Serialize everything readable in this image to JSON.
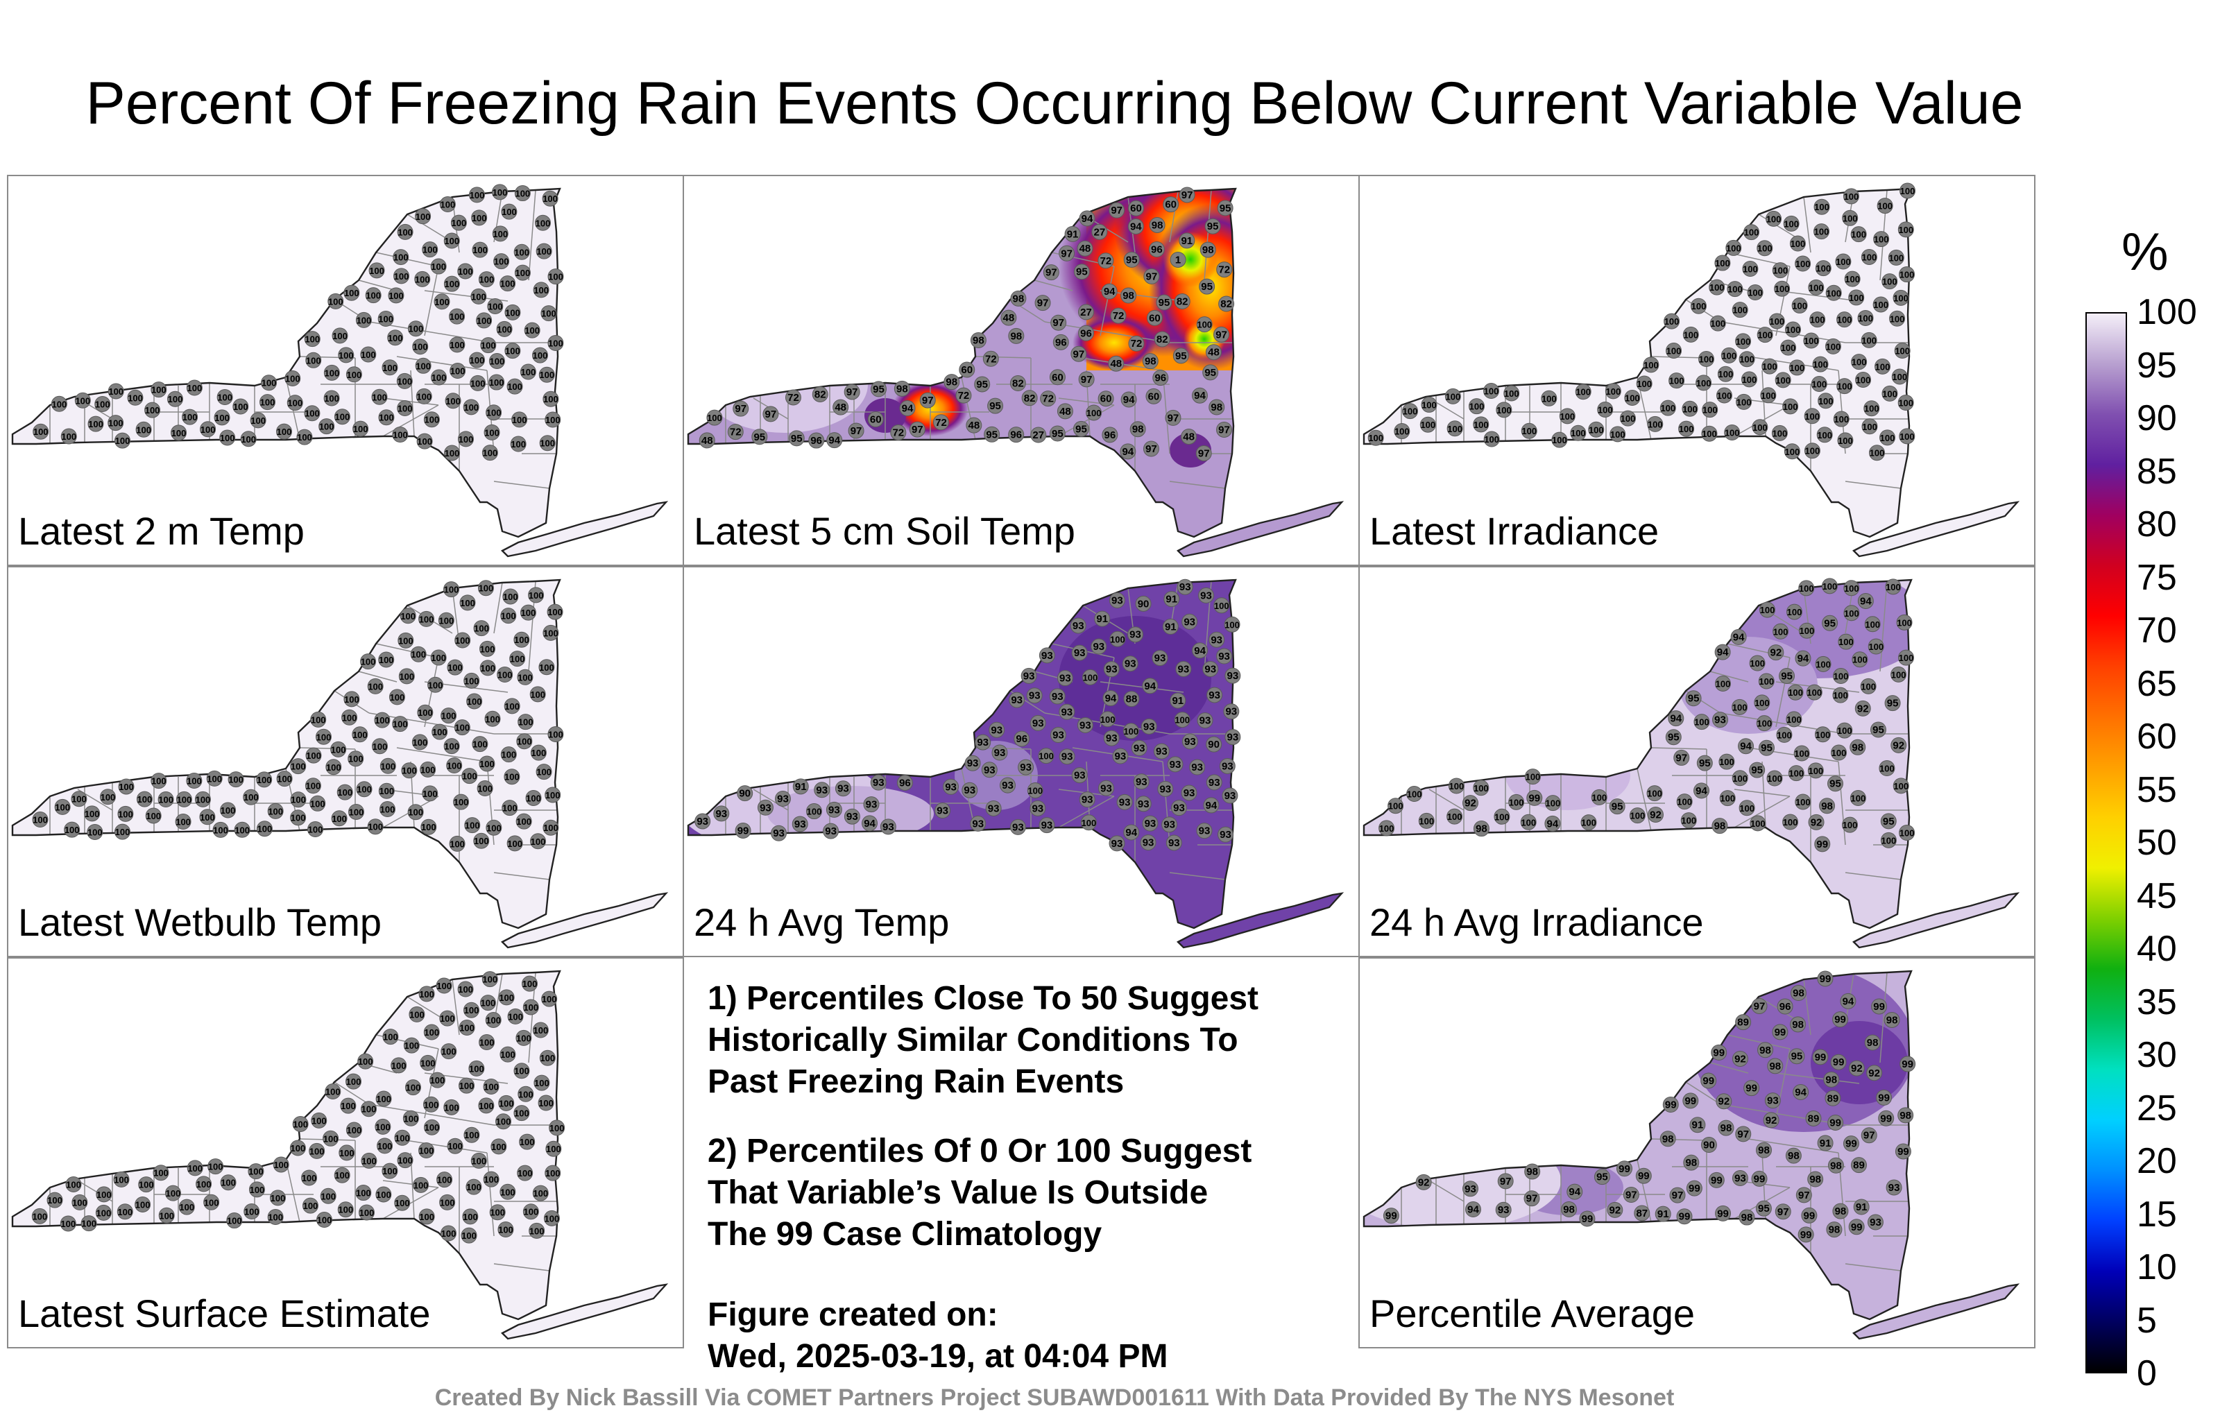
{
  "title": "Percent Of Freezing Rain Events Occurring Below Current Variable Value",
  "panels": [
    {
      "id": "p1",
      "label": "Latest 2 m Temp",
      "mode": "uniform",
      "values": [
        100,
        100,
        100,
        100,
        100,
        100,
        100,
        100,
        100,
        100,
        100,
        100,
        100,
        100,
        100,
        100,
        100,
        100,
        100,
        100,
        100,
        100,
        100,
        100,
        100,
        100,
        100,
        100,
        100,
        100,
        100,
        100,
        100,
        100,
        100,
        100,
        100,
        100,
        100,
        100,
        100,
        100,
        100,
        100,
        100,
        100,
        100,
        100,
        100,
        100,
        100,
        100,
        100,
        100,
        100,
        100,
        100,
        100,
        100,
        100,
        100,
        100,
        100,
        100,
        100,
        100,
        100,
        100,
        100,
        100,
        100,
        100,
        100,
        100,
        100,
        100,
        100,
        100,
        100,
        100,
        100,
        100,
        100,
        100,
        100,
        100,
        100,
        100,
        100,
        100,
        100,
        100,
        100,
        100,
        100,
        100,
        100,
        100,
        100,
        100,
        100,
        100,
        100,
        100,
        100,
        100,
        100,
        100,
        100,
        100,
        100,
        100,
        100,
        100,
        100,
        100,
        100,
        100,
        100,
        100,
        100,
        100,
        100,
        100,
        100,
        100
      ]
    },
    {
      "id": "p2",
      "label": "Latest 5 cm Soil Temp",
      "mode": "hotspots",
      "values": [
        94,
        60,
        72,
        72,
        95,
        72,
        95,
        48,
        82,
        72,
        48,
        48,
        72,
        60,
        48,
        60,
        95,
        82,
        95,
        72,
        60,
        48,
        82,
        60,
        27,
        94,
        91,
        95,
        72,
        48,
        60,
        48,
        95,
        72,
        27,
        97,
        48,
        72,
        97,
        60,
        48,
        97,
        91,
        1,
        98,
        100,
        97,
        97,
        97,
        98,
        97,
        96,
        97,
        96,
        97,
        96,
        97,
        97,
        95,
        94,
        98,
        96,
        82,
        97,
        94,
        95,
        95,
        95,
        82,
        60,
        27,
        95,
        94,
        95,
        96,
        97,
        72,
        82,
        98,
        94,
        95,
        97,
        97,
        95,
        95,
        94,
        98,
        97,
        97,
        72,
        98,
        96,
        97,
        98,
        96,
        98,
        98,
        98,
        100,
        97,
        98,
        94,
        95,
        97,
        100
      ]
    },
    {
      "id": "p3",
      "label": "Latest Irradiance",
      "mode": "uniform",
      "values": [
        100,
        100,
        100,
        100,
        100,
        100,
        100,
        100,
        100,
        100,
        100,
        100,
        100,
        100,
        100,
        100,
        100,
        100,
        100,
        100,
        100,
        100,
        100,
        100,
        100,
        100,
        100,
        100,
        100,
        100,
        100,
        100,
        100,
        100,
        100,
        100,
        100,
        100,
        100,
        100,
        100,
        100,
        100,
        100,
        100,
        100,
        100,
        100,
        100,
        100,
        100,
        100,
        100,
        100,
        100,
        100,
        100,
        100,
        100,
        100,
        100,
        100,
        100,
        100,
        100,
        100,
        100,
        100,
        100,
        100,
        100,
        100,
        100,
        100,
        100,
        100,
        100,
        100,
        100,
        100,
        100,
        100,
        100,
        100,
        100,
        100,
        100,
        100,
        100,
        100,
        100,
        100,
        100,
        100,
        100,
        100,
        100,
        100,
        100,
        100,
        100,
        100,
        100,
        100,
        100,
        100,
        100,
        100,
        100,
        100,
        100,
        100,
        100,
        100,
        100,
        100,
        100,
        100,
        100,
        100,
        100,
        100,
        100,
        100,
        100,
        100
      ]
    },
    {
      "id": "p4",
      "label": "Latest Wetbulb Temp",
      "mode": "uniform",
      "values": [
        100,
        100,
        100,
        100,
        100,
        100,
        100,
        100,
        100,
        100,
        100,
        100,
        100,
        100,
        100,
        100,
        100,
        100,
        100,
        100,
        100,
        100,
        100,
        100,
        100,
        100,
        100,
        100,
        100,
        100,
        100,
        100,
        100,
        100,
        100,
        100,
        100,
        100,
        100,
        100,
        100,
        100,
        100,
        100,
        100,
        100,
        100,
        100,
        100,
        100,
        100,
        100,
        100,
        100,
        100,
        100,
        100,
        100,
        100,
        100,
        100,
        100,
        100,
        100,
        100,
        100,
        100,
        100,
        100,
        100,
        100,
        100,
        100,
        100,
        100,
        100,
        100,
        100,
        100,
        100,
        100,
        100,
        100,
        100,
        100,
        100,
        100,
        100,
        100,
        100,
        100,
        100,
        100,
        100,
        100,
        100,
        100,
        100,
        100,
        100,
        100,
        100,
        100,
        100,
        100,
        100,
        100,
        100,
        100,
        100,
        100,
        100,
        100,
        100,
        100,
        100,
        100,
        100,
        100,
        100,
        100,
        100,
        100,
        100,
        100,
        100
      ]
    },
    {
      "id": "p5",
      "label": "24 h Avg Temp",
      "mode": "avgtemp",
      "values": [
        93,
        93,
        93,
        90,
        91,
        93,
        93,
        93,
        93,
        93,
        91,
        93,
        93,
        91,
        93,
        88,
        91,
        90,
        93,
        93,
        93,
        93,
        93,
        91,
        93,
        90,
        93,
        93,
        93,
        93,
        93,
        93,
        93,
        93,
        93,
        94,
        93,
        93,
        93,
        93,
        93,
        93,
        93,
        93,
        93,
        93,
        93,
        93,
        93,
        93,
        93,
        93,
        93,
        93,
        93,
        93,
        93,
        93,
        93,
        93,
        93,
        93,
        100,
        99,
        100,
        94,
        100,
        100,
        94,
        100,
        100,
        96,
        100,
        96,
        94,
        100,
        100,
        100,
        93,
        93,
        93,
        93,
        93,
        93,
        93,
        93,
        94,
        93,
        93,
        94,
        93,
        93,
        93,
        93,
        100,
        93,
        93,
        93,
        93,
        93,
        93,
        93,
        93,
        93,
        93,
        93,
        93,
        93,
        93,
        93,
        93,
        93,
        93,
        93,
        93,
        93
      ]
    },
    {
      "id": "p6",
      "label": "24 h Avg Irradiance",
      "mode": "irr",
      "values": [
        93,
        92,
        95,
        94,
        92,
        94,
        94,
        95,
        92,
        95,
        94,
        98,
        100,
        92,
        92,
        100,
        95,
        94,
        94,
        99,
        95,
        100,
        94,
        95,
        100,
        95,
        92,
        100,
        100,
        95,
        98,
        100,
        100,
        98,
        99,
        95,
        95,
        100,
        95,
        100,
        94,
        98,
        100,
        100,
        100,
        100,
        97,
        100,
        100,
        100,
        100,
        100,
        95,
        100,
        100,
        100,
        100,
        100,
        100,
        100,
        100,
        100,
        100,
        100,
        100,
        100,
        100,
        100,
        100,
        100,
        100,
        100,
        100,
        100,
        100,
        100,
        100,
        100,
        100,
        100,
        100,
        100,
        100,
        100,
        100,
        100,
        100,
        100,
        100,
        100,
        100,
        100,
        100,
        100,
        100,
        100,
        100,
        100,
        100,
        100,
        100,
        100,
        100
      ]
    },
    {
      "id": "p8",
      "label": "Percentile Average",
      "mode": "avg",
      "values": [
        94,
        97,
        97,
        92,
        93,
        93,
        92,
        97,
        92,
        91,
        96,
        92,
        93,
        91,
        90,
        92,
        95,
        87,
        93,
        91,
        94,
        92,
        91,
        93,
        89,
        97,
        95,
        89,
        94,
        89,
        98,
        93,
        99,
        99,
        99,
        94,
        99,
        99,
        89,
        92,
        97,
        98,
        98,
        98,
        99,
        99,
        99,
        98,
        97,
        99,
        97,
        98,
        98,
        98,
        98,
        95,
        98,
        99,
        99,
        99,
        98,
        97,
        97,
        99,
        99,
        98,
        99,
        99,
        99,
        98,
        99,
        99,
        99,
        99,
        98,
        98,
        98,
        99,
        99,
        99,
        99,
        98,
        98,
        99,
        99,
        98,
        99,
        98,
        99,
        98,
        99,
        99,
        99,
        99,
        99,
        99,
        99,
        99,
        99,
        98,
        99,
        99,
        99,
        99,
        99,
        99
      ]
    },
    {
      "id": "p7",
      "label": "Latest Surface Estimate",
      "mode": "uniform",
      "values": [
        100,
        100,
        100,
        100,
        100,
        100,
        100,
        100,
        100,
        100,
        100,
        100,
        100,
        100,
        100,
        100,
        100,
        100,
        100,
        100,
        100,
        100,
        100,
        100,
        100,
        100,
        100,
        100,
        100,
        100,
        100,
        100,
        100,
        100,
        100,
        100,
        100,
        100,
        100,
        100,
        100,
        100,
        100,
        100,
        100,
        100,
        100,
        100,
        100,
        100,
        100,
        100,
        100,
        100,
        100,
        100,
        100,
        100,
        100,
        100,
        100,
        100,
        100,
        100,
        100,
        100,
        100,
        100,
        100,
        100,
        100,
        100,
        100,
        100,
        100,
        100,
        100,
        100,
        100,
        100,
        100,
        100,
        100,
        100,
        100,
        100,
        100,
        100,
        100,
        100,
        100,
        100,
        100,
        100,
        100,
        100,
        100,
        100,
        100,
        100,
        100,
        100,
        100,
        100,
        100,
        100,
        100,
        100,
        100,
        100,
        100,
        100,
        100,
        100,
        100,
        100,
        100,
        100,
        100,
        100,
        100,
        100,
        100,
        100,
        100,
        100
      ]
    }
  ],
  "notes": {
    "note1": "1) Percentiles Close To 50 Suggest\nHistorically Similar Conditions To\nPast Freezing Rain Events",
    "note2": "2) Percentiles Of 0 Or 100 Suggest\nThat Variable’s Value Is Outside\nThe 99 Case Climatology",
    "note3": "Figure created on:\nWed, 2025-03-19, at 04:04 PM"
  },
  "colorbar": {
    "unit": "%",
    "ticks": [
      "0",
      "5",
      "10",
      "15",
      "20",
      "25",
      "30",
      "35",
      "40",
      "45",
      "50",
      "55",
      "60",
      "65",
      "70",
      "75",
      "80",
      "85",
      "90",
      "95",
      "100"
    ],
    "stops": [
      "#000000",
      "#000060",
      "#0000b8",
      "#0040ff",
      "#0090ff",
      "#00d0ff",
      "#00e0c0",
      "#00c060",
      "#10b010",
      "#80d000",
      "#f0f000",
      "#ffd000",
      "#ffa000",
      "#ff7000",
      "#ff4000",
      "#ff0000",
      "#d00020",
      "#a00060",
      "#6020a0",
      "#8050b0",
      "#b8a0d0",
      "#f4eff8"
    ]
  },
  "credit": "Created By Nick Bassill Via COMET Partners Project SUBAWD001611 With Data Provided By The NYS Mesonet"
}
